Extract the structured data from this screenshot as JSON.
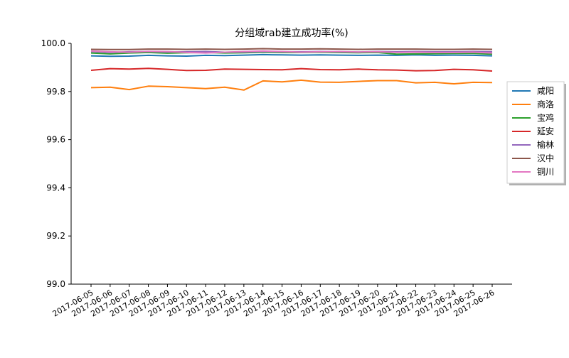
{
  "chart_data": {
    "type": "line",
    "title": "分组域rab建立成功率(%)",
    "xlabel": "",
    "ylabel": "",
    "ylim": [
      99.0,
      100.0
    ],
    "yticks": [
      "99.0",
      "99.2",
      "99.4",
      "99.6",
      "99.8",
      "100.0"
    ],
    "grid": false,
    "legend_position": "right",
    "categories": [
      "2017-06-05",
      "2017-06-06",
      "2017-06-07",
      "2017-06-08",
      "2017-06-09",
      "2017-06-10",
      "2017-06-11",
      "2017-06-12",
      "2017-06-13",
      "2017-06-14",
      "2017-06-15",
      "2017-06-16",
      "2017-06-17",
      "2017-06-18",
      "2017-06-19",
      "2017-06-20",
      "2017-06-21",
      "2017-06-22",
      "2017-06-23",
      "2017-06-24",
      "2017-06-25",
      "2017-06-26"
    ],
    "series": [
      {
        "name": "咸阳",
        "color": "#1f77b4",
        "values": [
          99.948,
          99.946,
          99.947,
          99.95,
          99.948,
          99.947,
          99.95,
          99.949,
          99.951,
          99.953,
          99.952,
          99.951,
          99.952,
          99.951,
          99.95,
          99.951,
          99.95,
          99.952,
          99.95,
          99.951,
          99.95,
          99.948
        ]
      },
      {
        "name": "商洛",
        "color": "#ff7f0e",
        "values": [
          99.816,
          99.818,
          99.808,
          99.822,
          99.82,
          99.816,
          99.812,
          99.818,
          99.806,
          99.844,
          99.84,
          99.847,
          99.839,
          99.838,
          99.842,
          99.845,
          99.845,
          99.836,
          99.838,
          99.832,
          99.838,
          99.837
        ]
      },
      {
        "name": "宝鸡",
        "color": "#2ca02c",
        "values": [
          99.96,
          99.956,
          99.96,
          99.962,
          99.959,
          99.961,
          99.962,
          99.96,
          99.961,
          99.963,
          99.962,
          99.962,
          99.963,
          99.962,
          99.961,
          99.962,
          99.955,
          99.956,
          99.957,
          99.958,
          99.958,
          99.955
        ]
      },
      {
        "name": "延安",
        "color": "#d62728",
        "values": [
          99.888,
          99.895,
          99.893,
          99.896,
          99.892,
          99.887,
          99.888,
          99.893,
          99.892,
          99.891,
          99.89,
          99.895,
          99.891,
          99.89,
          99.893,
          99.89,
          99.889,
          99.886,
          99.887,
          99.892,
          99.89,
          99.885
        ]
      },
      {
        "name": "榆林",
        "color": "#9467bd",
        "values": [
          99.966,
          99.962,
          99.965,
          99.966,
          99.964,
          99.965,
          99.966,
          99.963,
          99.964,
          99.966,
          99.965,
          99.965,
          99.966,
          99.965,
          99.964,
          99.966,
          99.965,
          99.966,
          99.965,
          99.965,
          99.966,
          99.965
        ]
      },
      {
        "name": "汉中",
        "color": "#8c564b",
        "values": [
          99.975,
          99.974,
          99.974,
          99.976,
          99.976,
          99.975,
          99.976,
          99.975,
          99.976,
          99.978,
          99.976,
          99.976,
          99.977,
          99.976,
          99.975,
          99.976,
          99.976,
          99.976,
          99.975,
          99.975,
          99.976,
          99.975
        ]
      },
      {
        "name": "铜川",
        "color": "#e377c2",
        "values": [
          99.968,
          99.965,
          99.963,
          99.967,
          99.966,
          99.962,
          99.96,
          99.963,
          99.966,
          99.968,
          99.966,
          99.963,
          99.965,
          99.966,
          99.964,
          99.965,
          99.962,
          99.963,
          99.962,
          99.962,
          99.963,
          99.96
        ]
      }
    ]
  }
}
